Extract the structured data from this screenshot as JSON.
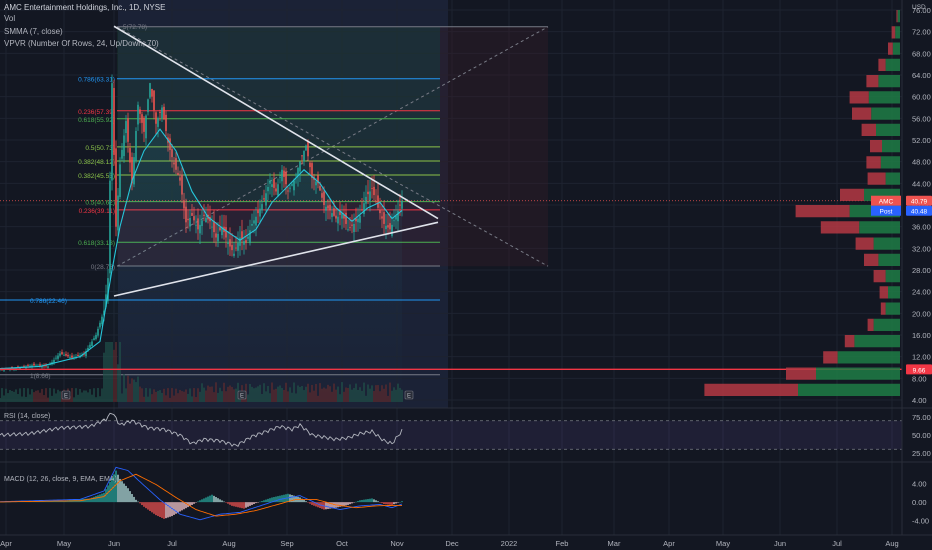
{
  "header": {
    "symbol_line": "AMC Entertainment Holdings, Inc., 1D, NYSE",
    "vol_label": "Vol",
    "smma_label": "SMMA (7, close)",
    "vpvr_label": "VPVR (Number Of Rows, 24, Up/Down, 70)",
    "currency": "USD"
  },
  "price_tags": {
    "amc": {
      "label": "AMC",
      "value": "40.79"
    },
    "post": {
      "label": "Post",
      "value": "40.48"
    },
    "line": {
      "value": "9.66"
    }
  },
  "colors": {
    "background": "#131722",
    "up": "#26a69a",
    "down": "#ef5350",
    "smma": "#26c6da",
    "rsi": "#b2b5be",
    "macd": "#2962ff",
    "signal": "#ff6d00",
    "hline": "#f23645",
    "vpvr_up": "#1e7d45",
    "vpvr_down": "#b53843"
  },
  "chart_data": [
    {
      "type": "candlestick",
      "title": "AMC Entertainment Holdings, Inc., 1D, NYSE",
      "x_tick_labels": [
        "Apr",
        "May",
        "Jun",
        "Jul",
        "Aug",
        "Sep",
        "Oct",
        "Nov",
        "Dec",
        "2022",
        "Feb",
        "Mar",
        "Apr",
        "May",
        "Jun",
        "Jul",
        "Aug"
      ],
      "y_tick_labels": [
        "4.00",
        "8.00",
        "12.00",
        "16.00",
        "20.00",
        "24.00",
        "28.00",
        "32.00",
        "36.00",
        "40.00",
        "44.00",
        "48.00",
        "52.00",
        "56.00",
        "60.00",
        "64.00",
        "68.00",
        "72.00",
        "76.00"
      ],
      "ylim": [
        4,
        76
      ],
      "close_path": [
        [
          0,
          9.7
        ],
        [
          8,
          9.9
        ],
        [
          16,
          10.4
        ],
        [
          24,
          10.2
        ],
        [
          30,
          12.6
        ],
        [
          36,
          11.8
        ],
        [
          42,
          12.4
        ],
        [
          48,
          16.0
        ],
        [
          52,
          20.5
        ],
        [
          54,
          26.5
        ],
        [
          56,
          62.5
        ],
        [
          58,
          36.0
        ],
        [
          60,
          47.5
        ],
        [
          63,
          55.5
        ],
        [
          66,
          44.0
        ],
        [
          69,
          58.5
        ],
        [
          72,
          53.5
        ],
        [
          75,
          62.5
        ],
        [
          78,
          55.0
        ],
        [
          81,
          58.0
        ],
        [
          84,
          51.5
        ],
        [
          87,
          47.5
        ],
        [
          90,
          44.5
        ],
        [
          93,
          36.8
        ],
        [
          96,
          38.0
        ],
        [
          99,
          35.5
        ],
        [
          102,
          38.0
        ],
        [
          105,
          37.0
        ],
        [
          108,
          34.0
        ],
        [
          111,
          36.0
        ],
        [
          114,
          33.0
        ],
        [
          117,
          31.0
        ],
        [
          120,
          34.0
        ],
        [
          123,
          33.0
        ],
        [
          126,
          36.5
        ],
        [
          129,
          38.5
        ],
        [
          132,
          41.0
        ],
        [
          135,
          44.5
        ],
        [
          138,
          42.5
        ],
        [
          141,
          46.5
        ],
        [
          144,
          42.5
        ],
        [
          147,
          44.5
        ],
        [
          150,
          48.0
        ],
        [
          153,
          51.0
        ],
        [
          156,
          45.0
        ],
        [
          159,
          44.0
        ],
        [
          162,
          40.0
        ],
        [
          165,
          39.0
        ],
        [
          168,
          37.5
        ],
        [
          171,
          38.5
        ],
        [
          174,
          35.5
        ],
        [
          177,
          36.5
        ],
        [
          180,
          38.0
        ],
        [
          183,
          41.5
        ],
        [
          186,
          43.0
        ],
        [
          189,
          39.5
        ],
        [
          192,
          36.5
        ],
        [
          195,
          35.5
        ],
        [
          198,
          38.0
        ],
        [
          201,
          40.8
        ]
      ],
      "smma_path": [
        [
          0,
          9.8
        ],
        [
          20,
          10.2
        ],
        [
          40,
          12.0
        ],
        [
          50,
          14.8
        ],
        [
          56,
          28.0
        ],
        [
          60,
          36.0
        ],
        [
          66,
          44.5
        ],
        [
          72,
          50.0
        ],
        [
          80,
          54.0
        ],
        [
          88,
          50.0
        ],
        [
          96,
          42.5
        ],
        [
          104,
          37.8
        ],
        [
          112,
          35.5
        ],
        [
          120,
          33.5
        ],
        [
          128,
          35.5
        ],
        [
          136,
          40.5
        ],
        [
          144,
          43.5
        ],
        [
          152,
          46.5
        ],
        [
          160,
          44.0
        ],
        [
          168,
          39.5
        ],
        [
          176,
          37.0
        ],
        [
          184,
          39.5
        ],
        [
          190,
          40.5
        ],
        [
          196,
          37.5
        ],
        [
          201,
          39.0
        ]
      ],
      "triangle": {
        "upper": [
          [
            57,
            73.0
          ],
          [
            219,
            37.5
          ]
        ],
        "lower": [
          [
            57,
            23.2
          ],
          [
            219,
            36.8
          ]
        ]
      },
      "fibonacci": {
        "box_top": 72.9,
        "box_bottom": 28.7,
        "lines": [
          {
            "label": "0.786(63.31)",
            "value": 63.31,
            "side": "left",
            "color": "#2196f3"
          },
          {
            "label": "0.618(55.92)",
            "value": 55.92,
            "side": "left",
            "color": "#4caf50"
          },
          {
            "label": "0.5(50.73)",
            "value": 50.73,
            "side": "left",
            "color": "#8bc34a"
          },
          {
            "label": "0.382(48.12)",
            "value": 48.12,
            "side": "left",
            "color": "#8bc34a"
          },
          {
            "label": "0.382(45.53)",
            "value": 45.53,
            "side": "left",
            "color": "#8bc34a"
          },
          {
            "label": "0.5(40.62)",
            "value": 40.62,
            "side": "left",
            "color": "#4caf50"
          },
          {
            "label": "0.236(39.11)",
            "value": 39.11,
            "side": "left",
            "color": "#f23645"
          },
          {
            "label": "0.236(57.39)",
            "value": 57.39,
            "side": "left",
            "color": "#f23645"
          },
          {
            "label": "0.618(33.13)",
            "value": 33.13,
            "side": "left",
            "color": "#4caf50"
          },
          {
            "label": "0(28.73)",
            "value": 28.73,
            "side": "left",
            "color": "#787b86"
          },
          {
            "label": "0.786(22.46)",
            "value": 22.46,
            "side": "left",
            "color": "#2196f3"
          },
          {
            "label": "1(8.66)",
            "value": 8.66,
            "side": "left",
            "color": "#787b86"
          }
        ]
      },
      "horizontal_line": 9.66
    },
    {
      "type": "area",
      "title": "RSI (14, close)",
      "y_tick_labels": [
        "75.00",
        "50.00",
        "25.00"
      ],
      "ylim": [
        15,
        85
      ],
      "values_path": [
        [
          0,
          50
        ],
        [
          15,
          52
        ],
        [
          30,
          60
        ],
        [
          45,
          62
        ],
        [
          53,
          72
        ],
        [
          56,
          82
        ],
        [
          60,
          64
        ],
        [
          66,
          70
        ],
        [
          74,
          60
        ],
        [
          82,
          58
        ],
        [
          90,
          50
        ],
        [
          96,
          38
        ],
        [
          102,
          44
        ],
        [
          110,
          42
        ],
        [
          118,
          35
        ],
        [
          126,
          48
        ],
        [
          134,
          56
        ],
        [
          140,
          62
        ],
        [
          146,
          58
        ],
        [
          150,
          64
        ],
        [
          156,
          50
        ],
        [
          162,
          47
        ],
        [
          168,
          44
        ],
        [
          174,
          46
        ],
        [
          180,
          52
        ],
        [
          186,
          55
        ],
        [
          192,
          42
        ],
        [
          196,
          38
        ],
        [
          201,
          56
        ]
      ],
      "bands": [
        70,
        30
      ]
    },
    {
      "type": "bar",
      "title": "MACD (12, 26, close, 9, EMA, EMA)",
      "y_tick_labels": [
        "4.00",
        "0.00",
        "-4.00"
      ],
      "ylim": [
        -6,
        8
      ],
      "hist_path": [
        [
          0,
          0.05
        ],
        [
          30,
          0.3
        ],
        [
          45,
          0.8
        ],
        [
          52,
          2.0
        ],
        [
          56,
          5.2
        ],
        [
          58,
          6.8
        ],
        [
          60,
          5.0
        ],
        [
          64,
          3.0
        ],
        [
          68,
          0.5
        ],
        [
          72,
          -1.0
        ],
        [
          78,
          -2.8
        ],
        [
          82,
          -3.6
        ],
        [
          86,
          -3.0
        ],
        [
          90,
          -2.0
        ],
        [
          96,
          -0.6
        ],
        [
          100,
          0.4
        ],
        [
          106,
          1.6
        ],
        [
          110,
          0.6
        ],
        [
          116,
          -0.8
        ],
        [
          122,
          -1.4
        ],
        [
          128,
          -0.2
        ],
        [
          136,
          1.0
        ],
        [
          144,
          1.8
        ],
        [
          150,
          1.0
        ],
        [
          156,
          -0.6
        ],
        [
          162,
          -1.6
        ],
        [
          168,
          -1.2
        ],
        [
          174,
          -0.6
        ],
        [
          180,
          0.4
        ],
        [
          186,
          0.8
        ],
        [
          192,
          -0.4
        ],
        [
          196,
          -0.6
        ],
        [
          201,
          0.2
        ]
      ],
      "macd_path": [
        [
          0,
          0.1
        ],
        [
          40,
          0.6
        ],
        [
          52,
          2.4
        ],
        [
          58,
          7.5
        ],
        [
          64,
          6.8
        ],
        [
          72,
          3.6
        ],
        [
          80,
          0.5
        ],
        [
          90,
          -2.6
        ],
        [
          100,
          -3.8
        ],
        [
          110,
          -2.6
        ],
        [
          120,
          -2.2
        ],
        [
          130,
          -0.8
        ],
        [
          140,
          0.6
        ],
        [
          150,
          1.4
        ],
        [
          160,
          -0.6
        ],
        [
          170,
          -1.6
        ],
        [
          180,
          -0.8
        ],
        [
          190,
          -0.5
        ],
        [
          196,
          -1.2
        ],
        [
          201,
          -0.4
        ]
      ],
      "signal_path": [
        [
          0,
          0.05
        ],
        [
          40,
          0.3
        ],
        [
          52,
          1.2
        ],
        [
          60,
          4.6
        ],
        [
          68,
          6.0
        ],
        [
          78,
          3.8
        ],
        [
          88,
          1.0
        ],
        [
          98,
          -1.6
        ],
        [
          108,
          -3.0
        ],
        [
          118,
          -2.6
        ],
        [
          128,
          -1.8
        ],
        [
          138,
          -0.6
        ],
        [
          148,
          0.6
        ],
        [
          158,
          0.6
        ],
        [
          168,
          -0.6
        ],
        [
          178,
          -1.2
        ],
        [
          188,
          -0.8
        ],
        [
          196,
          -0.7
        ],
        [
          201,
          -0.7
        ]
      ]
    }
  ],
  "vpvr_rows": [
    {
      "up": 0.85,
      "down": 0.78
    },
    {
      "up": 0.7,
      "down": 0.25
    },
    {
      "up": 0.52,
      "down": 0.12
    },
    {
      "up": 0.38,
      "down": 0.08
    },
    {
      "up": 0.22,
      "down": 0.05
    },
    {
      "up": 0.12,
      "down": 0.04
    },
    {
      "up": 0.1,
      "down": 0.07
    },
    {
      "up": 0.12,
      "down": 0.1
    },
    {
      "up": 0.18,
      "down": 0.12
    },
    {
      "up": 0.22,
      "down": 0.15
    },
    {
      "up": 0.34,
      "down": 0.32
    },
    {
      "up": 0.42,
      "down": 0.45
    },
    {
      "up": 0.3,
      "down": 0.2
    },
    {
      "up": 0.12,
      "down": 0.15
    },
    {
      "up": 0.16,
      "down": 0.12
    },
    {
      "up": 0.15,
      "down": 0.1
    },
    {
      "up": 0.2,
      "down": 0.12
    },
    {
      "up": 0.24,
      "down": 0.16
    },
    {
      "up": 0.26,
      "down": 0.16
    },
    {
      "up": 0.18,
      "down": 0.1
    },
    {
      "up": 0.12,
      "down": 0.06
    },
    {
      "up": 0.06,
      "down": 0.04
    },
    {
      "up": 0.04,
      "down": 0.03
    },
    {
      "up": 0.02,
      "down": 0.01
    }
  ],
  "ruler_label": "5(72.78)"
}
